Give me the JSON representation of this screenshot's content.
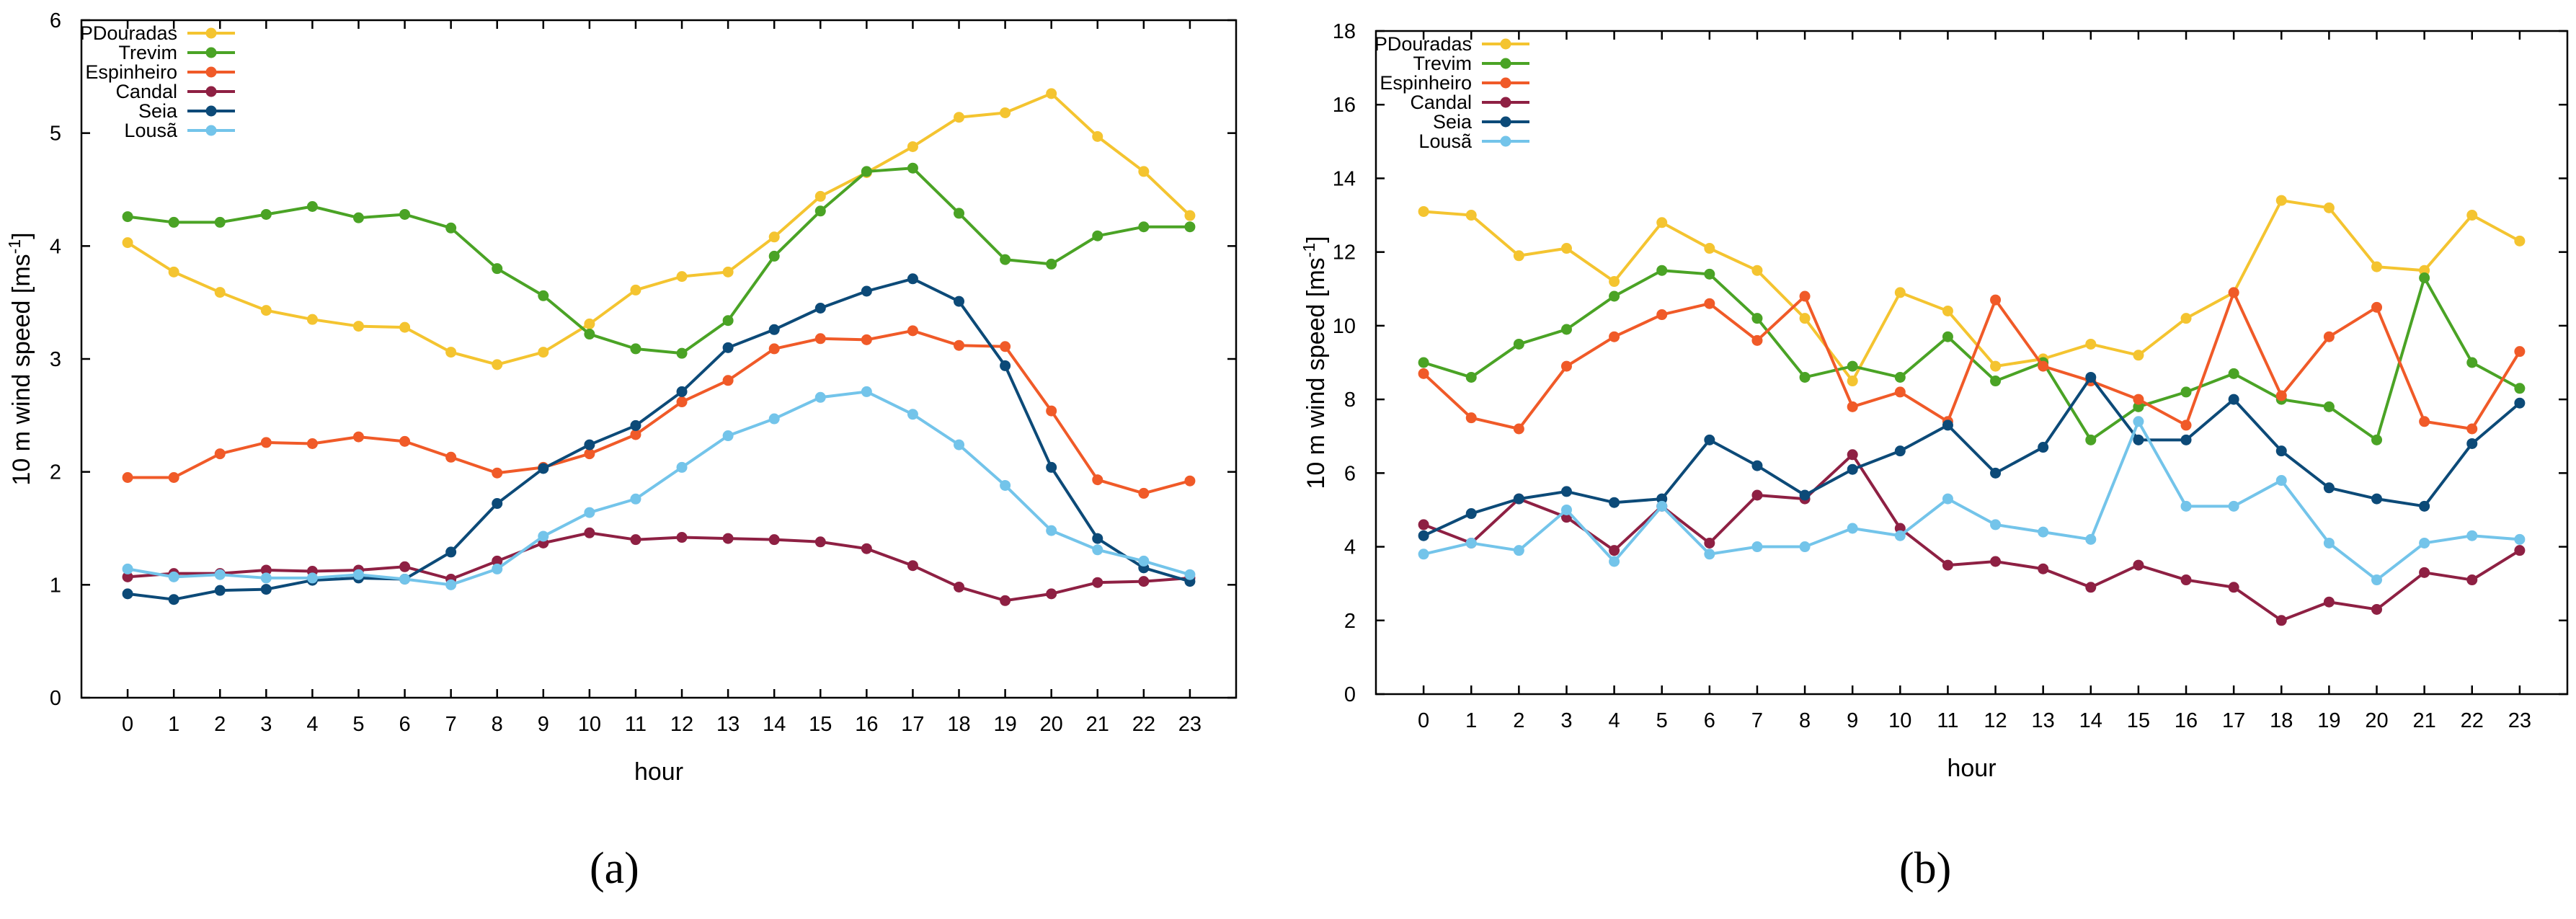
{
  "chart_data": [
    {
      "type": "line",
      "caption": "(a)",
      "xlabel": "hour",
      "ylabel": "10 m wind speed [ms",
      "ylabel_sup": "-1",
      "ylabel_end": "]",
      "xlim": [
        -1,
        24
      ],
      "ylim": [
        0,
        6
      ],
      "yticks": [
        0,
        1,
        2,
        3,
        4,
        5,
        6
      ],
      "x": [
        0,
        1,
        2,
        3,
        4,
        5,
        6,
        7,
        8,
        9,
        10,
        11,
        12,
        13,
        14,
        15,
        16,
        17,
        18,
        19,
        20,
        21,
        22,
        23
      ],
      "legend_position": "top-left",
      "series": [
        {
          "name": "PDouradas",
          "color": "#f4c430",
          "values": [
            4.03,
            3.77,
            3.59,
            3.43,
            3.35,
            3.29,
            3.28,
            3.06,
            2.95,
            3.06,
            3.31,
            3.61,
            3.73,
            3.77,
            4.08,
            4.44,
            4.65,
            4.88,
            5.14,
            5.18,
            5.35,
            4.97,
            4.66,
            4.27
          ]
        },
        {
          "name": "Trevim",
          "color": "#4aa325",
          "values": [
            4.26,
            4.21,
            4.21,
            4.28,
            4.35,
            4.25,
            4.28,
            4.16,
            3.8,
            3.56,
            3.22,
            3.09,
            3.05,
            3.34,
            3.91,
            4.31,
            4.66,
            4.69,
            4.29,
            3.88,
            3.84,
            4.09,
            4.17,
            4.17
          ]
        },
        {
          "name": "Espinheiro",
          "color": "#f05a28",
          "values": [
            1.95,
            1.95,
            2.16,
            2.26,
            2.25,
            2.31,
            2.27,
            2.13,
            1.99,
            2.04,
            2.16,
            2.33,
            2.62,
            2.81,
            3.09,
            3.18,
            3.17,
            3.25,
            3.12,
            3.11,
            2.54,
            1.93,
            1.81,
            1.92
          ]
        },
        {
          "name": "Candal",
          "color": "#8e2043",
          "values": [
            1.07,
            1.1,
            1.1,
            1.13,
            1.12,
            1.13,
            1.16,
            1.05,
            1.21,
            1.37,
            1.46,
            1.4,
            1.42,
            1.41,
            1.4,
            1.38,
            1.32,
            1.17,
            0.98,
            0.86,
            0.92,
            1.02,
            1.03,
            1.06
          ]
        },
        {
          "name": "Seia",
          "color": "#0c4a78",
          "values": [
            0.92,
            0.87,
            0.95,
            0.96,
            1.04,
            1.06,
            1.05,
            1.29,
            1.72,
            2.03,
            2.24,
            2.41,
            2.71,
            3.1,
            3.26,
            3.45,
            3.6,
            3.71,
            3.51,
            2.94,
            2.04,
            1.41,
            1.15,
            1.03
          ]
        },
        {
          "name": "Lousã",
          "color": "#73c4ea",
          "values": [
            1.14,
            1.07,
            1.09,
            1.06,
            1.06,
            1.09,
            1.05,
            1.0,
            1.14,
            1.43,
            1.64,
            1.76,
            2.04,
            2.32,
            2.47,
            2.66,
            2.71,
            2.51,
            2.24,
            1.88,
            1.48,
            1.31,
            1.21,
            1.09
          ]
        }
      ]
    },
    {
      "type": "line",
      "caption": "(b)",
      "xlabel": "hour",
      "ylabel": "10 m wind speed [ms",
      "ylabel_sup": "-1",
      "ylabel_end": "]",
      "xlim": [
        -1,
        24
      ],
      "ylim": [
        0,
        18
      ],
      "yticks": [
        0,
        2,
        4,
        6,
        8,
        10,
        12,
        14,
        16,
        18
      ],
      "x": [
        0,
        1,
        2,
        3,
        4,
        5,
        6,
        7,
        8,
        9,
        10,
        11,
        12,
        13,
        14,
        15,
        16,
        17,
        18,
        19,
        20,
        21,
        22,
        23
      ],
      "legend_position": "top-left",
      "series": [
        {
          "name": "PDouradas",
          "color": "#f4c430",
          "values": [
            13.1,
            13.0,
            11.9,
            12.1,
            11.2,
            12.8,
            12.1,
            11.5,
            10.2,
            8.5,
            10.9,
            10.4,
            8.9,
            9.1,
            9.5,
            9.2,
            10.2,
            10.9,
            13.4,
            13.2,
            11.6,
            11.5,
            13.0,
            12.3
          ]
        },
        {
          "name": "Trevim",
          "color": "#4aa325",
          "values": [
            9.0,
            8.6,
            9.5,
            9.9,
            10.8,
            11.5,
            11.4,
            10.2,
            8.6,
            8.9,
            8.6,
            9.7,
            8.5,
            9.0,
            6.9,
            7.8,
            8.2,
            8.7,
            8.0,
            7.8,
            6.9,
            11.3,
            9.0,
            8.3
          ]
        },
        {
          "name": "Espinheiro",
          "color": "#f05a28",
          "values": [
            8.7,
            7.5,
            7.2,
            8.9,
            9.7,
            10.3,
            10.6,
            9.6,
            10.8,
            7.8,
            8.2,
            7.4,
            10.7,
            8.9,
            8.5,
            8.0,
            7.3,
            10.9,
            8.1,
            9.7,
            10.5,
            7.4,
            7.2,
            9.3
          ]
        },
        {
          "name": "Candal",
          "color": "#8e2043",
          "values": [
            4.6,
            4.1,
            5.3,
            4.8,
            3.9,
            5.1,
            4.1,
            5.4,
            5.3,
            6.5,
            4.5,
            3.5,
            3.6,
            3.4,
            2.9,
            3.5,
            3.1,
            2.9,
            2.0,
            2.5,
            2.3,
            3.3,
            3.1,
            3.9
          ]
        },
        {
          "name": "Seia",
          "color": "#0c4a78",
          "values": [
            4.3,
            4.9,
            5.3,
            5.5,
            5.2,
            5.3,
            6.9,
            6.2,
            5.4,
            6.1,
            6.6,
            7.3,
            6.0,
            6.7,
            8.6,
            6.9,
            6.9,
            8.0,
            6.6,
            5.6,
            5.3,
            5.1,
            6.8,
            7.9
          ]
        },
        {
          "name": "Lousã",
          "color": "#73c4ea",
          "values": [
            3.8,
            4.1,
            3.9,
            5.0,
            3.6,
            5.1,
            3.8,
            4.0,
            4.0,
            4.5,
            4.3,
            5.3,
            4.6,
            4.4,
            4.2,
            7.4,
            5.1,
            5.1,
            5.8,
            4.1,
            3.1,
            4.1,
            4.3,
            4.2
          ]
        }
      ]
    }
  ]
}
